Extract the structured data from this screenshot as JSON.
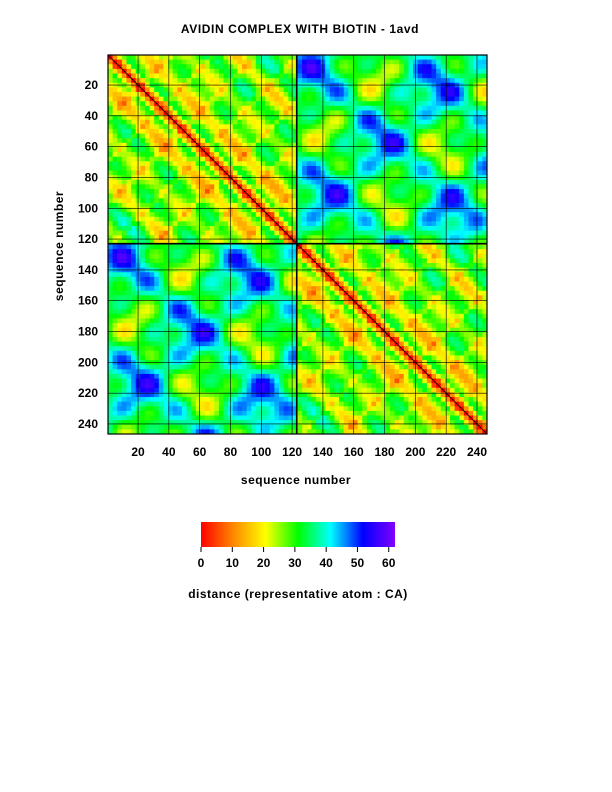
{
  "chart_data": {
    "type": "heatmap",
    "title": "AVIDIN COMPLEX WITH BIOTIN - 1avd",
    "xlabel": "sequence number",
    "ylabel": "sequence number",
    "xlim": [
      1,
      246
    ],
    "ylim": [
      1,
      246
    ],
    "y_inverted": true,
    "x_ticks": [
      20,
      40,
      60,
      80,
      100,
      120,
      140,
      160,
      180,
      200,
      220,
      240
    ],
    "y_ticks": [
      20,
      40,
      60,
      80,
      100,
      120,
      140,
      160,
      180,
      200,
      220,
      240
    ],
    "grid": true,
    "chain_boundary": 123,
    "matrix_description": "Symmetric CA-CA distance matrix of the avidin dimer (two chains of 123 residues); short distances (red) along the diagonal and beta-sheet cross-strand stripes, long distances (blue) between chains.",
    "colorbar": {
      "label": "distance (representative atom : CA)",
      "min": 0,
      "max": 62,
      "ticks": [
        0,
        10,
        20,
        30,
        40,
        50,
        60
      ],
      "colors": [
        "#ff0000",
        "#ff8800",
        "#ffff00",
        "#00ff00",
        "#00ffff",
        "#0000ff",
        "#8000ff"
      ]
    }
  },
  "colors": {
    "grid": "#000000",
    "contour": "#000000",
    "background": "#ffffff"
  }
}
